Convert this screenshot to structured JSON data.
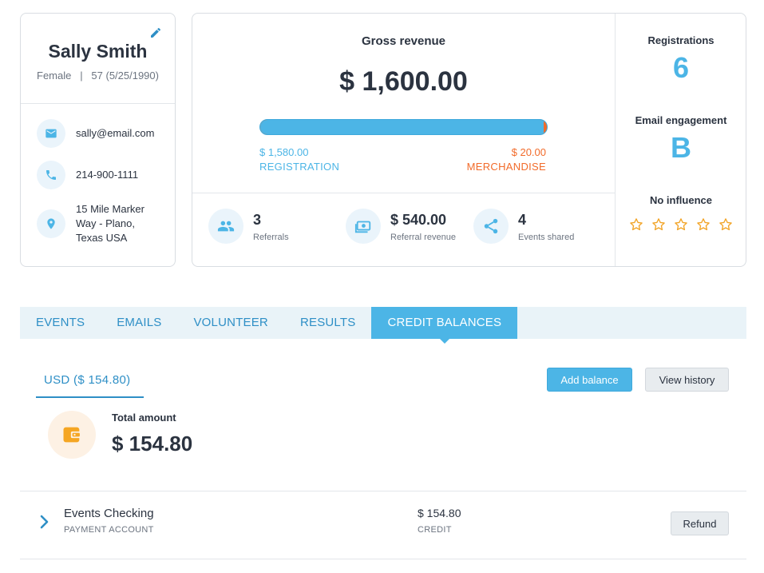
{
  "profile": {
    "name": "Sally Smith",
    "meta": "Female   |   57 (5/25/1990)",
    "email": "sally@email.com",
    "phone": "214-900-1111",
    "address_line1": "15 Mile Marker",
    "address_line2": "Way - Plano,",
    "address_line3": "Texas USA"
  },
  "revenue": {
    "title": "Gross revenue",
    "amount": "$ 1,600.00",
    "registration_fraction": 0.9875,
    "registration_value": "$ 1,580.00",
    "registration_label": "REGISTRATION",
    "merchandise_value": "$ 20.00",
    "merchandise_label": "MERCHANDISE"
  },
  "stats": [
    {
      "value": "3",
      "label": "Referrals",
      "icon": "people-icon"
    },
    {
      "value": "$ 540.00",
      "label": "Referral revenue",
      "icon": "money-icon"
    },
    {
      "value": "4",
      "label": "Events shared",
      "icon": "share-icon"
    }
  ],
  "side": {
    "registrations_title": "Registrations",
    "registrations_value": "6",
    "engagement_title": "Email engagement",
    "engagement_value": "B",
    "influence_title": "No influence",
    "influence_stars": 0,
    "influence_max": 5
  },
  "tabs": [
    {
      "label": "EVENTS",
      "active": false
    },
    {
      "label": "EMAILS",
      "active": false
    },
    {
      "label": "VOLUNTEER",
      "active": false
    },
    {
      "label": "RESULTS",
      "active": false
    },
    {
      "label": "CREDIT BALANCES",
      "active": true
    }
  ],
  "balances": {
    "currency_tab": "USD ($ 154.80)",
    "add_balance": "Add balance",
    "view_history": "View history",
    "total_label": "Total amount",
    "total_amount": "$ 154.80",
    "rows": [
      {
        "name": "Events Checking",
        "type": "PAYMENT ACCOUNT",
        "amount": "$ 154.80",
        "amount_label": "CREDIT",
        "action": "Refund"
      }
    ]
  },
  "colors": {
    "accent": "#4cb5e6",
    "accent_dark": "#2e8fc6",
    "merchandise": "#f26b2a",
    "star": "#f2a427",
    "wallet": "#f5a623"
  }
}
